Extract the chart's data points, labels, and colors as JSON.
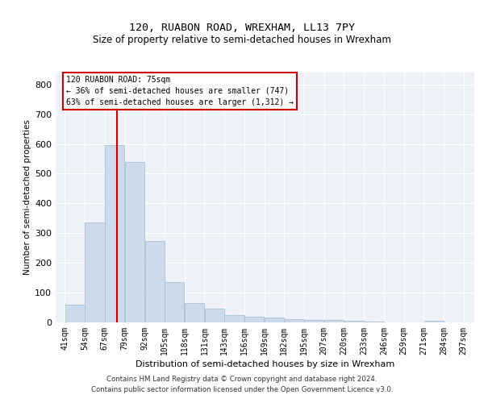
{
  "title": "120, RUABON ROAD, WREXHAM, LL13 7PY",
  "subtitle": "Size of property relative to semi-detached houses in Wrexham",
  "xlabel": "Distribution of semi-detached houses by size in Wrexham",
  "ylabel": "Number of semi-detached properties",
  "footer_line1": "Contains HM Land Registry data © Crown copyright and database right 2024.",
  "footer_line2": "Contains public sector information licensed under the Open Government Licence v3.0.",
  "bar_labels": [
    "41sqm",
    "54sqm",
    "67sqm",
    "79sqm",
    "92sqm",
    "105sqm",
    "118sqm",
    "131sqm",
    "143sqm",
    "156sqm",
    "169sqm",
    "182sqm",
    "195sqm",
    "207sqm",
    "220sqm",
    "233sqm",
    "246sqm",
    "259sqm",
    "271sqm",
    "284sqm",
    "297sqm"
  ],
  "bar_values": [
    60,
    335,
    595,
    540,
    275,
    135,
    65,
    45,
    25,
    18,
    15,
    12,
    8,
    8,
    6,
    4,
    1,
    0,
    6,
    0,
    0
  ],
  "bar_color": "#ccdaeb",
  "bar_edge_color": "#a8bfd4",
  "plot_bg_color": "#eef2f8",
  "grid_color": "#ffffff",
  "vline_color": "#cc0000",
  "annotation_title": "120 RUABON ROAD: 75sqm",
  "annotation_line1": "← 36% of semi-detached houses are smaller (747)",
  "annotation_line2": "63% of semi-detached houses are larger (1,312) →",
  "annotation_box_color": "#ffffff",
  "annotation_box_edge_color": "#cc0000",
  "ylim": [
    0,
    840
  ],
  "bin_width": 13
}
